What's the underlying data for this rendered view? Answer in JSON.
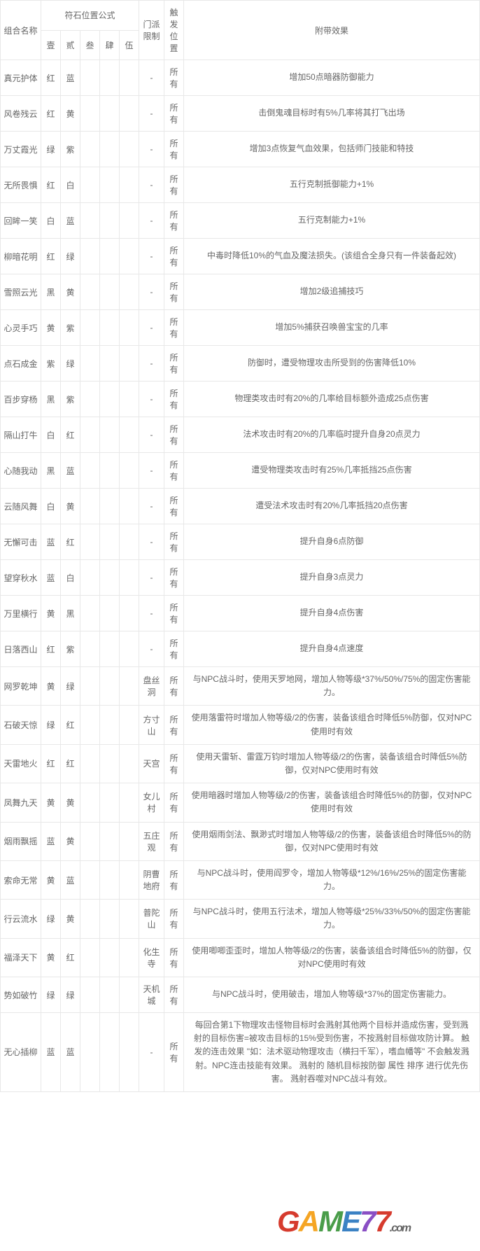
{
  "headers": {
    "name": "组合名称",
    "stone_group": "符石位置公式",
    "stones": [
      "壹",
      "贰",
      "叁",
      "肆",
      "伍"
    ],
    "school": "门派限制",
    "trigger": "触发位置",
    "effect": "附带效果"
  },
  "rows": [
    {
      "name": "真元护体",
      "s": [
        "红",
        "蓝",
        "",
        "",
        ""
      ],
      "school": "-",
      "trigger": "所有",
      "effect": "增加50点暗器防御能力"
    },
    {
      "name": "风卷残云",
      "s": [
        "红",
        "黄",
        "",
        "",
        ""
      ],
      "school": "-",
      "trigger": "所有",
      "effect": "击倒鬼魂目标时有5%几率将其打飞出场"
    },
    {
      "name": "万丈霞光",
      "s": [
        "绿",
        "紫",
        "",
        "",
        ""
      ],
      "school": "-",
      "trigger": "所有",
      "effect": "增加3点恢复气血效果，包括师门技能和特技"
    },
    {
      "name": "无所畏惧",
      "s": [
        "红",
        "白",
        "",
        "",
        ""
      ],
      "school": "-",
      "trigger": "所有",
      "effect": "五行克制抵御能力+1%"
    },
    {
      "name": "回眸一笑",
      "s": [
        "白",
        "蓝",
        "",
        "",
        ""
      ],
      "school": "-",
      "trigger": "所有",
      "effect": "五行克制能力+1%"
    },
    {
      "name": "柳暗花明",
      "s": [
        "红",
        "绿",
        "",
        "",
        ""
      ],
      "school": "-",
      "trigger": "所有",
      "effect": "中毒时降低10%的气血及魔法损失。(该组合全身只有一件装备起效)"
    },
    {
      "name": "雪照云光",
      "s": [
        "黑",
        "黄",
        "",
        "",
        ""
      ],
      "school": "-",
      "trigger": "所有",
      "effect": "增加2级追捕技巧"
    },
    {
      "name": "心灵手巧",
      "s": [
        "黄",
        "紫",
        "",
        "",
        ""
      ],
      "school": "-",
      "trigger": "所有",
      "effect": "增加5%捕获召唤兽宝宝的几率"
    },
    {
      "name": "点石成金",
      "s": [
        "紫",
        "绿",
        "",
        "",
        ""
      ],
      "school": "-",
      "trigger": "所有",
      "effect": "防御时，遭受物理攻击所受到的伤害降低10%"
    },
    {
      "name": "百步穿杨",
      "s": [
        "黑",
        "紫",
        "",
        "",
        ""
      ],
      "school": "-",
      "trigger": "所有",
      "effect": "物理类攻击时有20%的几率给目标额外造成25点伤害"
    },
    {
      "name": "隔山打牛",
      "s": [
        "白",
        "红",
        "",
        "",
        ""
      ],
      "school": "-",
      "trigger": "所有",
      "effect": "法术攻击时有20%的几率临时提升自身20点灵力"
    },
    {
      "name": "心随我动",
      "s": [
        "黑",
        "蓝",
        "",
        "",
        ""
      ],
      "school": "-",
      "trigger": "所有",
      "effect": "遭受物理类攻击时有25%几率抵挡25点伤害"
    },
    {
      "name": "云随风舞",
      "s": [
        "白",
        "黄",
        "",
        "",
        ""
      ],
      "school": "-",
      "trigger": "所有",
      "effect": "遭受法术攻击时有20%几率抵挡20点伤害"
    },
    {
      "name": "无懈可击",
      "s": [
        "蓝",
        "红",
        "",
        "",
        ""
      ],
      "school": "-",
      "trigger": "所有",
      "effect": "提升自身6点防御"
    },
    {
      "name": "望穿秋水",
      "s": [
        "蓝",
        "白",
        "",
        "",
        ""
      ],
      "school": "-",
      "trigger": "所有",
      "effect": "提升自身3点灵力"
    },
    {
      "name": "万里横行",
      "s": [
        "黄",
        "黑",
        "",
        "",
        ""
      ],
      "school": "-",
      "trigger": "所有",
      "effect": "提升自身4点伤害"
    },
    {
      "name": "日落西山",
      "s": [
        "红",
        "紫",
        "",
        "",
        ""
      ],
      "school": "-",
      "trigger": "所有",
      "effect": "提升自身4点速度"
    },
    {
      "name": "网罗乾坤",
      "s": [
        "黄",
        "绿",
        "",
        "",
        ""
      ],
      "school": "盘丝洞",
      "trigger": "所有",
      "effect": "与NPC战斗时，使用天罗地网，增加人物等级*37%/50%/75%的固定伤害能力。"
    },
    {
      "name": "石破天惊",
      "s": [
        "绿",
        "红",
        "",
        "",
        ""
      ],
      "school": "方寸山",
      "trigger": "所有",
      "effect": "使用落雷符时增加人物等级/2的伤害，装备该组合时降低5%防御，仅对NPC使用时有效"
    },
    {
      "name": "天雷地火",
      "s": [
        "红",
        "红",
        "",
        "",
        ""
      ],
      "school": "天宫",
      "trigger": "所有",
      "effect": "使用天雷斩、雷霆万钧时增加人物等级/2的伤害，装备该组合时降低5%防御，仅对NPC使用时有效"
    },
    {
      "name": "凤舞九天",
      "s": [
        "黄",
        "黄",
        "",
        "",
        ""
      ],
      "school": "女儿村",
      "trigger": "所有",
      "effect": "使用暗器时增加人物等级/2的伤害，装备该组合时降低5%的防御，仅对NPC使用时有效"
    },
    {
      "name": "烟雨飘摇",
      "s": [
        "蓝",
        "黄",
        "",
        "",
        ""
      ],
      "school": "五庄观",
      "trigger": "所有",
      "effect": "使用烟雨剑法、飘渺式时增加人物等级/2的伤害，装备该组合时降低5%的防御，仅对NPC使用时有效"
    },
    {
      "name": "索命无常",
      "s": [
        "黄",
        "蓝",
        "",
        "",
        ""
      ],
      "school": "阴曹地府",
      "trigger": "所有",
      "effect": "与NPC战斗时，使用阎罗令，增加人物等级*12%/16%/25%的固定伤害能力。"
    },
    {
      "name": "行云流水",
      "s": [
        "绿",
        "黄",
        "",
        "",
        ""
      ],
      "school": "普陀山",
      "trigger": "所有",
      "effect": "与NPC战斗时，使用五行法术，增加人物等级*25%/33%/50%的固定伤害能力。"
    },
    {
      "name": "福泽天下",
      "s": [
        "黄",
        "红",
        "",
        "",
        ""
      ],
      "school": "化生寺",
      "trigger": "所有",
      "effect": "使用唧唧歪歪时，增加人物等级/2的伤害，装备该组合时降低5%的防御，仅对NPC使用时有效"
    },
    {
      "name": "势如破竹",
      "s": [
        "绿",
        "绿",
        "",
        "",
        ""
      ],
      "school": "天机城",
      "trigger": "所有",
      "effect": "与NPC战斗时，使用破击，增加人物等级*37%的固定伤害能力。"
    },
    {
      "name": "无心插柳",
      "s": [
        "蓝",
        "蓝",
        "",
        "",
        ""
      ],
      "school": "-",
      "trigger": "所有",
      "effect": "每回合第1下物理攻击怪物目标时会溅射其他两个目标并造成伤害，受到溅射的目标伤害=被攻击目标的15%受到伤害，不按溅射目标做攻防计算。\n触发的连击效果 \"如：法术驱动物理攻击（横扫千军），嗜血幡等\" 不会触发溅射。NPC连击技能有效果。\n溅射的 随机目标按防御 属性 排序 进行优先伤害。\n溅射吞噬对NPC战斗有效。"
    }
  ],
  "watermark": {
    "text": "GAME77",
    "url": ".com",
    "colors": [
      "#d63b2e",
      "#f5a524",
      "#4a9d4a",
      "#3b82c4",
      "#8a4fc4"
    ]
  }
}
